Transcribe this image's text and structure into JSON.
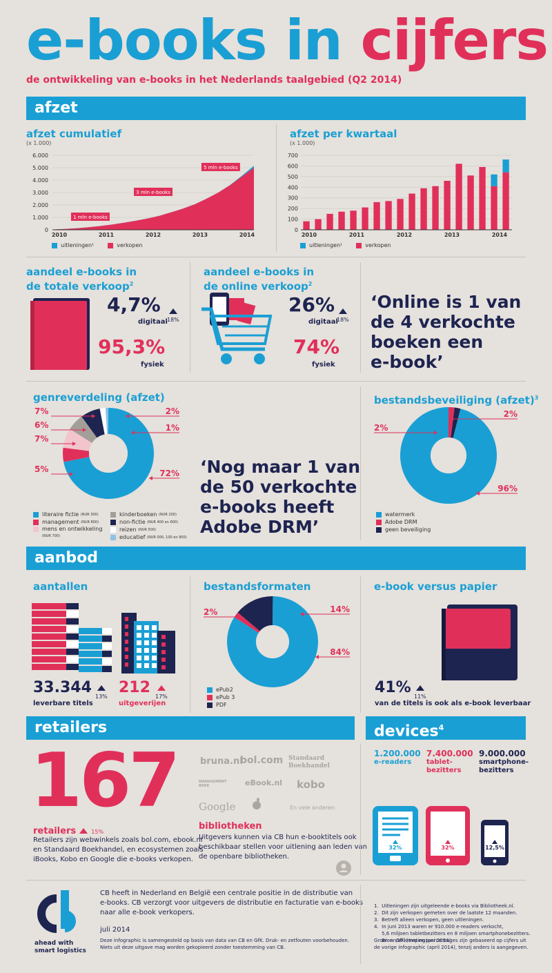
{
  "header": {
    "title_part1": "e-books in",
    "title_part2": "cijfers",
    "subtitle": "de ontwikkeling van e-books in het Nederlands taalgebied (Q2 2014)"
  },
  "sections": {
    "afzet": "afzet",
    "aanbod": "aanbod",
    "retailers": "retailers",
    "devices": "devices",
    "devices_sup": "4"
  },
  "colors": {
    "blue": "#1a9fd4",
    "red": "#e0305a",
    "navy": "#1e2450",
    "bg": "#e5e1dc"
  },
  "chart_data": [
    {
      "type": "area",
      "title": "afzet cumulatief",
      "subtitle": "(x 1.000)",
      "x_labels": [
        "2010",
        "2011",
        "2012",
        "2013",
        "2014"
      ],
      "y_ticks": [
        "6.000",
        "5.000",
        "4.000",
        "3.000",
        "2.000",
        "1.000",
        "0"
      ],
      "ylim": [
        0,
        6000
      ],
      "x": [
        0,
        1,
        2,
        3,
        4,
        5,
        6,
        7,
        8,
        9,
        10,
        11,
        12,
        13,
        14,
        15,
        16,
        17
      ],
      "series": [
        {
          "name": "uitleningen¹",
          "values": [
            0,
            0,
            0,
            0,
            0,
            0,
            0,
            0,
            0,
            0,
            0,
            0,
            0,
            0,
            0,
            10,
            60,
            150
          ]
        },
        {
          "name": "verkopen",
          "values": [
            20,
            60,
            120,
            200,
            300,
            420,
            560,
            720,
            900,
            1120,
            1400,
            1700,
            2050,
            2500,
            3000,
            3600,
            4300,
            5000
          ]
        }
      ],
      "annotations": [
        "1 mln e-books",
        "3 mln e-books",
        "5 mln e-books"
      ],
      "legend": "bottom"
    },
    {
      "type": "bar",
      "title": "afzet per kwartaal",
      "subtitle": "(x 1.000)",
      "x_labels": [
        "2010",
        "2011",
        "2012",
        "2013",
        "2014"
      ],
      "y_ticks": [
        "700",
        "600",
        "500",
        "400",
        "300",
        "200",
        "100",
        "0"
      ],
      "ylim": [
        0,
        700
      ],
      "series": [
        {
          "name": "uitleningen¹",
          "values": [
            0,
            0,
            0,
            0,
            0,
            0,
            0,
            0,
            0,
            0,
            0,
            0,
            0,
            0,
            0,
            0,
            110,
            120
          ]
        },
        {
          "name": "verkopen",
          "values": [
            80,
            100,
            150,
            170,
            180,
            210,
            260,
            270,
            290,
            340,
            390,
            410,
            460,
            620,
            510,
            590,
            410,
            540
          ]
        }
      ],
      "legend": "bottom"
    },
    {
      "type": "pie",
      "title": "genreverdeling (afzet)",
      "slices": [
        {
          "name": "literaire fictie",
          "note": "(NUR 300)",
          "value": 72,
          "label": "72%"
        },
        {
          "name": "management",
          "note": "(NUR 800)",
          "value": 5,
          "label": "5%"
        },
        {
          "name": "mens en ontwikkeling",
          "note": "(NUR 700)",
          "value": 7,
          "label": "7%"
        },
        {
          "name": "kinderboeken",
          "note": "(NUR 200)",
          "value": 6,
          "label": "6%"
        },
        {
          "name": "non-fictie",
          "note": "(NUR 400 en 600)",
          "value": 7,
          "label": "7%"
        },
        {
          "name": "reizen",
          "note": "(NUR 500)",
          "value": 2,
          "label": "2%"
        },
        {
          "name": "educatief",
          "note": "(NUR 000, 100 en 900)",
          "value": 1,
          "label": "1%"
        }
      ]
    },
    {
      "type": "pie",
      "title": "bestandsbeveiliging (afzet)",
      "title_sup": "3",
      "slices": [
        {
          "name": "watermerk",
          "value": 96,
          "label": "96%"
        },
        {
          "name": "Adobe DRM",
          "value": 2,
          "label": "2%"
        },
        {
          "name": "geen beveiliging",
          "value": 2,
          "label": "2%"
        }
      ]
    },
    {
      "type": "pie",
      "title": "bestandsformaten",
      "slices": [
        {
          "name": "ePub2",
          "value": 84,
          "label": "84%"
        },
        {
          "name": "ePub 3",
          "value": 2,
          "label": "2%"
        },
        {
          "name": "PDF",
          "value": 14,
          "label": "14%"
        }
      ]
    }
  ],
  "aandeel_totaal": {
    "title_line1": "aandeel e-books in",
    "title_line2": "de totale verkoop",
    "sup": "2",
    "digitaal": "4,7%",
    "digitaal_label": "digitaal",
    "change": "18%",
    "fysiek": "95,3%",
    "fysiek_label": "fysiek"
  },
  "aandeel_online": {
    "title_line1": "aandeel e-books in",
    "title_line2": "de online verkoop",
    "sup": "2",
    "digitaal": "26%",
    "digitaal_label": "digitaal",
    "change": "18%",
    "fysiek": "74%",
    "fysiek_label": "fysiek"
  },
  "quotes": {
    "online": [
      "‘Online is 1 van",
      "de 4 verkochte",
      "boeken een",
      "e-book’"
    ],
    "drm": [
      "‘Nog maar 1 van",
      "de 50 verkochte",
      "e-books heeft",
      "Adobe DRM’"
    ]
  },
  "aantallen": {
    "title": "aantallen",
    "titels_value": "33.344",
    "titels_change": "13%",
    "titels_label": "leverbare titels",
    "uitgeverijen_value": "212",
    "uitgeverijen_change": "17%",
    "uitgeverijen_label": "uitgeverijen"
  },
  "versus": {
    "title": "e-book versus papier",
    "value": "41%",
    "change": "11%",
    "label": "van de titels is ook als e-book leverbaar"
  },
  "retailers": {
    "count": "167",
    "label": "retailers",
    "change": "15%",
    "desc_lines": [
      "Retailers zijn webwinkels zoals bol.com, ebook.nl",
      "en Standaard Boekhandel, en ecosystemen zoals",
      "iBooks, Kobo en Google die e-books verkopen."
    ],
    "logos": [
      "bruna.nl",
      "bol.com",
      "Standaard",
      "Boekhandel",
      "MANAGEMENT BOEK",
      "eBook.nl",
      "kobo",
      "Google",
      "En vele anderen"
    ],
    "bib_label": "bibliotheken",
    "bib_lines": [
      "Uitgevers kunnen via CB hun e-booktitels ook",
      "beschikbaar stellen voor uitlening aan leden van",
      "de openbare bibliotheken."
    ]
  },
  "devices": {
    "items": [
      {
        "value": "1.200.000",
        "label": "e-readers",
        "pct": "32%"
      },
      {
        "value": "7.400.000",
        "label_line1": "tablet-",
        "label_line2": "bezitters",
        "pct": "32%"
      },
      {
        "value": "9.000.000",
        "label_line1": "smartphone-",
        "label_line2": "bezitters",
        "pct": "12,5%"
      }
    ]
  },
  "footer": {
    "logo": "cb",
    "tagline_line1": "ahead with",
    "tagline_line2": "smart logistics",
    "about_lines": [
      "CB heeft in Nederland en België een centrale positie in de distributie van",
      "e-books. CB verzorgt voor uitgevers de distributie en facturatie van e-books",
      "naar alle e-book verkopers."
    ],
    "date": "juli 2014",
    "disclaimer_lines": [
      "Deze infographic is samengesteld op basis van data van CB en GfK. Druk- en zetfouten voorbehouden.",
      "Niets uit deze uitgave mag worden gekopieerd zonder toestemming van CB."
    ],
    "notes": [
      "1.  Uitleningen zijn uitgeleende e-books via Bibliotheek.nl.",
      "2.  Dit zijn verkopen gemeten over de laatste 12 maanden.",
      "3.  Betreft alleen verkopen, geen uitleningen.",
      "4.  In juni 2013 waren er 910.000 e-readers verkocht,",
      "     5,6 miljoen tabletbezitters en 8 miljoen smartphonebezitters.",
      "     Bron: GfK (mei en juni 2014)"
    ],
    "growth_lines": [
      "Groei- en/of krimpingspercentages zijn gebaseerd op cijfers uit",
      "de vorige infographic (april 2014), tenzij anders is aangegeven."
    ]
  }
}
